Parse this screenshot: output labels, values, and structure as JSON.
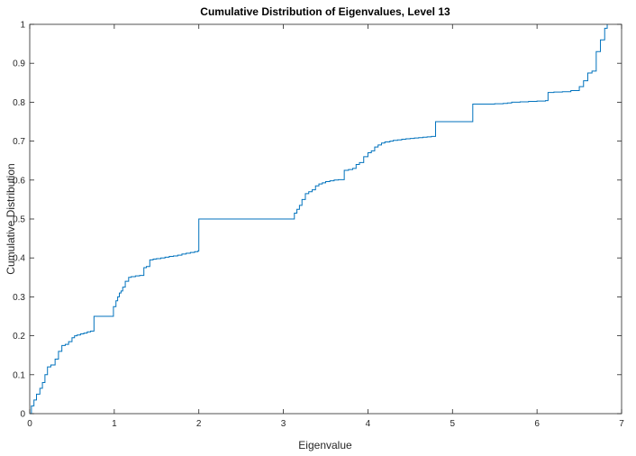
{
  "chart_data": {
    "type": "line",
    "title": "Cumulative Distribution of Eigenvalues, Level 13",
    "xlabel": "Eigenvalue",
    "ylabel": "Cumulative Distribution",
    "xlim": [
      0,
      7
    ],
    "ylim": [
      0,
      1
    ],
    "xticks": [
      "0",
      "1",
      "2",
      "3",
      "4",
      "5",
      "6",
      "7"
    ],
    "yticks": [
      "0",
      "0.1",
      "0.2",
      "0.3",
      "0.4",
      "0.5",
      "0.6",
      "0.7",
      "0.8",
      "0.9",
      "1"
    ],
    "grid": false,
    "line_color": "#0072BD",
    "series": [
      {
        "x": [
          0,
          0.02,
          0.05,
          0.08,
          0.12,
          0.15,
          0.18,
          0.21,
          0.25,
          0.3,
          0.34,
          0.38,
          0.42,
          0.46,
          0.5,
          0.53,
          0.56,
          0.6,
          0.64,
          0.68,
          0.72,
          0.76,
          0.76,
          0.8,
          0.85,
          0.9,
          0.95,
          0.99,
          1.02,
          1.04,
          1.06,
          1.08,
          1.1,
          1.13,
          1.17,
          1.2,
          1.25,
          1.3,
          1.35,
          1.38,
          1.42,
          1.46,
          1.5,
          1.55,
          1.6,
          1.65,
          1.7,
          1.75,
          1.8,
          1.85,
          1.9,
          1.95,
          1.99,
          2.0,
          2.0,
          2.3,
          2.6,
          2.9,
          3.1,
          3.13,
          3.16,
          3.19,
          3.22,
          3.26,
          3.3,
          3.34,
          3.38,
          3.42,
          3.46,
          3.5,
          3.55,
          3.6,
          3.65,
          3.72,
          3.77,
          3.82,
          3.86,
          3.9,
          3.95,
          4.0,
          4.04,
          4.08,
          4.12,
          4.16,
          4.2,
          4.26,
          4.3,
          4.35,
          4.4,
          4.45,
          4.5,
          4.55,
          4.6,
          4.65,
          4.7,
          4.75,
          4.8,
          4.8,
          5.0,
          5.24,
          5.24,
          5.3,
          5.5,
          5.6,
          5.65,
          5.7,
          5.8,
          5.9,
          6.0,
          6.1,
          6.13,
          6.2,
          6.3,
          6.4,
          6.5,
          6.55,
          6.6,
          6.65,
          6.7,
          6.75,
          6.8,
          6.83
        ],
        "y": [
          0,
          0.02,
          0.035,
          0.05,
          0.065,
          0.08,
          0.1,
          0.12,
          0.125,
          0.14,
          0.16,
          0.175,
          0.178,
          0.185,
          0.195,
          0.2,
          0.202,
          0.205,
          0.207,
          0.21,
          0.212,
          0.215,
          0.25,
          0.25,
          0.25,
          0.25,
          0.25,
          0.275,
          0.29,
          0.3,
          0.31,
          0.315,
          0.325,
          0.34,
          0.35,
          0.352,
          0.354,
          0.355,
          0.375,
          0.378,
          0.395,
          0.397,
          0.398,
          0.4,
          0.402,
          0.404,
          0.405,
          0.407,
          0.41,
          0.412,
          0.414,
          0.416,
          0.418,
          0.42,
          0.5,
          0.5,
          0.5,
          0.5,
          0.5,
          0.515,
          0.525,
          0.535,
          0.55,
          0.565,
          0.57,
          0.575,
          0.585,
          0.59,
          0.593,
          0.596,
          0.598,
          0.6,
          0.601,
          0.625,
          0.627,
          0.63,
          0.64,
          0.645,
          0.66,
          0.67,
          0.675,
          0.685,
          0.69,
          0.695,
          0.698,
          0.7,
          0.702,
          0.703,
          0.705,
          0.706,
          0.707,
          0.708,
          0.709,
          0.71,
          0.711,
          0.712,
          0.713,
          0.75,
          0.75,
          0.75,
          0.795,
          0.795,
          0.796,
          0.797,
          0.798,
          0.8,
          0.801,
          0.802,
          0.803,
          0.804,
          0.825,
          0.826,
          0.827,
          0.83,
          0.84,
          0.855,
          0.875,
          0.88,
          0.93,
          0.96,
          0.99,
          1.0
        ]
      }
    ]
  }
}
